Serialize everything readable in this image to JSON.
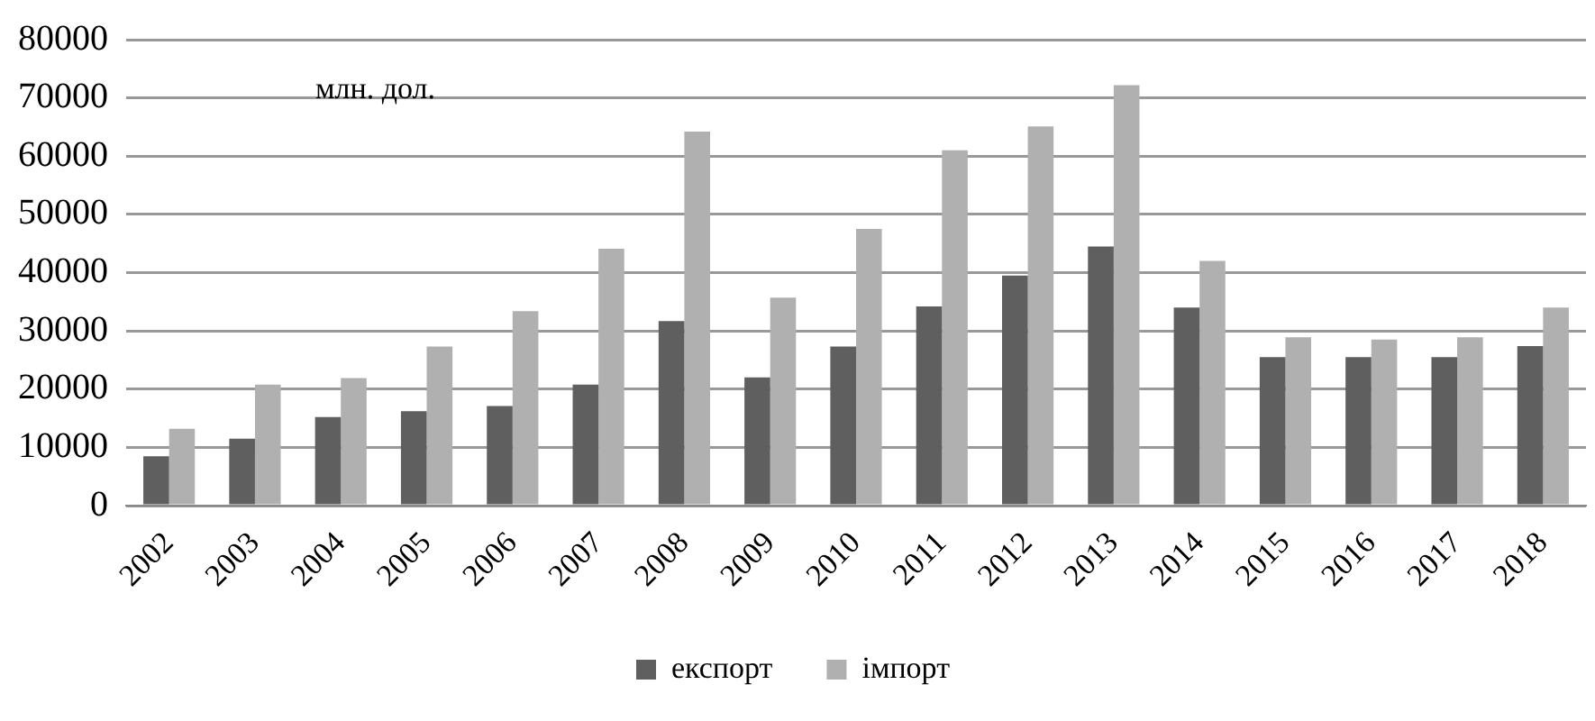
{
  "chart_data": {
    "type": "bar",
    "categories": [
      "2002",
      "2003",
      "2004",
      "2005",
      "2006",
      "2007",
      "2008",
      "2009",
      "2010",
      "2011",
      "2012",
      "2013",
      "2014",
      "2015",
      "2016",
      "2017",
      "2018"
    ],
    "series": [
      {
        "name": "експорт",
        "color": "#5f5f5f",
        "values": [
          8500,
          11500,
          15200,
          16200,
          17100,
          20800,
          31700,
          22000,
          27300,
          34200,
          39500,
          44500,
          34000,
          25500,
          25500,
          25500,
          27400
        ]
      },
      {
        "name": "імпорт",
        "color": "#b0b0b0",
        "values": [
          13200,
          20800,
          21900,
          27300,
          33400,
          44100,
          64200,
          35700,
          47500,
          61000,
          65100,
          72200,
          42000,
          28900,
          28500,
          28900,
          34000
        ]
      }
    ],
    "ylim": [
      0,
      80000
    ],
    "yticks": [
      0,
      10000,
      20000,
      30000,
      40000,
      50000,
      60000,
      70000,
      80000
    ],
    "grid": "y",
    "legend": "bottom",
    "annotations": [
      "млн. дол."
    ]
  }
}
